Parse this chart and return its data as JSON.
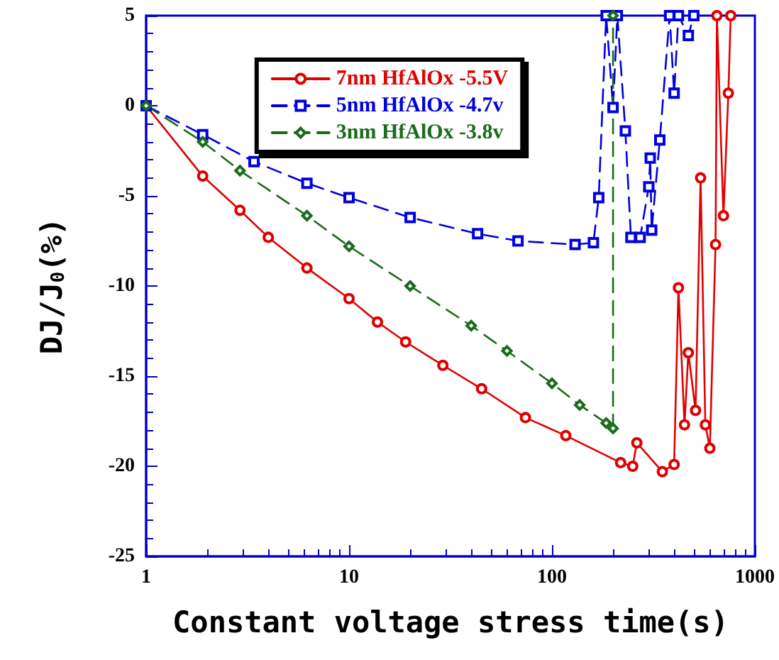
{
  "chart_data": {
    "type": "line",
    "xlabel": "Constant voltage stress time(s)",
    "ylabel": "DJ/J$_{0}$(%)",
    "log": "x",
    "xlim": [
      1,
      1000
    ],
    "xticks": [
      1,
      10,
      100,
      1000
    ],
    "ylim": [
      -25,
      5
    ],
    "yticks": [
      -25,
      -20,
      -15,
      -10,
      -5,
      0,
      5
    ],
    "grid": false,
    "legend": "top",
    "series": [
      {
        "name": "7nm HfAlOx -5.5V",
        "color": "#e00000",
        "marker": "circle",
        "line_style": "solid",
        "x": [
          1,
          1.9,
          2.9,
          4,
          6.2,
          10,
          13.8,
          19,
          29,
          45,
          74,
          117,
          218,
          250,
          262,
          350,
          400,
          420,
          450,
          470,
          510,
          540,
          570,
          600,
          640,
          650,
          700,
          740,
          760
        ],
        "values": [
          0,
          -3.9,
          -5.8,
          -7.3,
          -9,
          -10.7,
          -12,
          -13.1,
          -14.4,
          -15.7,
          -17.3,
          -18.3,
          -19.8,
          -20,
          -18.7,
          -20.3,
          -19.9,
          -10.1,
          -17.7,
          -13.7,
          -16.9,
          -4,
          -17.7,
          -19,
          -7.7,
          5,
          -6.1,
          0.7,
          5
        ]
      },
      {
        "name": "5nm HfAlOx -4.7v",
        "color": "#0000e0",
        "marker": "square",
        "line_style": "dashed",
        "x": [
          1,
          1.9,
          3.4,
          6.2,
          10,
          20,
          43,
          68,
          130,
          160,
          170,
          185,
          200,
          210,
          230,
          245,
          272,
          300,
          305,
          310,
          340,
          380,
          400,
          420,
          470,
          500
        ],
        "values": [
          0,
          -1.6,
          -3.1,
          -4.3,
          -5.1,
          -6.2,
          -7.1,
          -7.5,
          -7.7,
          -7.6,
          -5.1,
          5,
          -0.1,
          5,
          -1.4,
          -7.3,
          -7.3,
          -4.5,
          -2.9,
          -6.9,
          -1.9,
          5,
          0.7,
          5,
          3.9,
          5
        ]
      },
      {
        "name": "3nm HfAlOx -3.8v",
        "color": "#1a6b1a",
        "marker": "diamond",
        "line_style": "dashed",
        "x": [
          1,
          1.9,
          2.9,
          6.2,
          10,
          20,
          40,
          60,
          100,
          137,
          185,
          200,
          200
        ],
        "values": [
          0,
          -2,
          -3.6,
          -6.1,
          -7.8,
          -10,
          -12.2,
          -13.6,
          -15.4,
          -16.6,
          -17.6,
          -17.9,
          5
        ]
      }
    ]
  }
}
